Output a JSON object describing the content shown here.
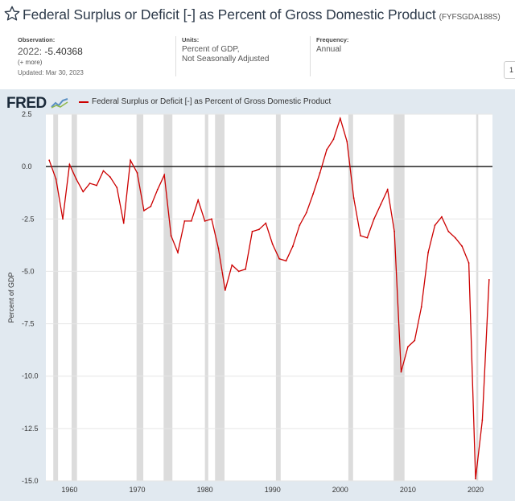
{
  "header": {
    "title": "Federal Surplus or Deficit [-] as Percent of Gross Domestic Product",
    "series_id": "(FYFSGDA188S)"
  },
  "meta": {
    "observation_label": "Observation:",
    "observation_year": "2022:",
    "observation_value": "-5.40368",
    "more_label": "(+ more)",
    "updated": "Updated: Mar 30, 2023",
    "units_label": "Units:",
    "units_line1": "Percent of GDP,",
    "units_line2": "Not Seasonally Adjusted",
    "frequency_label": "Frequency:",
    "frequency_value": "Annual",
    "edge_button": "1"
  },
  "brand": {
    "logo_text": "FRED",
    "accent": "#cc0000",
    "background": "#e1e9f0"
  },
  "chart_data": {
    "type": "line",
    "legend": "Federal Surplus or Deficit [-] as Percent of Gross Domestic Product",
    "ylabel": "Percent of GDP",
    "xlabel": "",
    "xlim": [
      1956.5,
      2022.5
    ],
    "ylim": [
      -15.0,
      2.5
    ],
    "y_ticks": [
      "2.5",
      "0.0",
      "-2.5",
      "-5.0",
      "-7.5",
      "-10.0",
      "-12.5",
      "-15.0"
    ],
    "y_tick_values": [
      2.5,
      0,
      -2.5,
      -5,
      -7.5,
      -10,
      -12.5,
      -15
    ],
    "x_ticks": [
      "1960",
      "1970",
      "1980",
      "1990",
      "2000",
      "2010",
      "2020"
    ],
    "x_tick_values": [
      1960,
      1970,
      1980,
      1990,
      2000,
      2010,
      2020
    ],
    "grid": "horizontal",
    "zero_line": true,
    "recessions": [
      [
        1957.6,
        1958.3
      ],
      [
        1960.3,
        1961.1
      ],
      [
        1969.9,
        1970.9
      ],
      [
        1973.9,
        1975.2
      ],
      [
        1980.0,
        1980.5
      ],
      [
        1981.5,
        1982.9
      ],
      [
        1990.5,
        1991.2
      ],
      [
        2001.2,
        2001.9
      ],
      [
        2007.9,
        2009.5
      ],
      [
        2020.1,
        2020.4
      ]
    ],
    "series": [
      {
        "color": "#cc0000",
        "x": [
          1957,
          1958,
          1959,
          1960,
          1961,
          1962,
          1963,
          1964,
          1965,
          1966,
          1967,
          1968,
          1969,
          1970,
          1971,
          1972,
          1973,
          1974,
          1975,
          1976,
          1977,
          1978,
          1979,
          1980,
          1981,
          1982,
          1983,
          1984,
          1985,
          1986,
          1987,
          1988,
          1989,
          1990,
          1991,
          1992,
          1993,
          1994,
          1995,
          1996,
          1997,
          1998,
          1999,
          2000,
          2001,
          2002,
          2003,
          2004,
          2005,
          2006,
          2007,
          2008,
          2009,
          2010,
          2011,
          2012,
          2013,
          2014,
          2015,
          2016,
          2017,
          2018,
          2019,
          2020,
          2021,
          2022
        ],
        "values": [
          0.3,
          -0.6,
          -2.5,
          0.1,
          -0.6,
          -1.2,
          -0.8,
          -0.9,
          -0.2,
          -0.5,
          -1.0,
          -2.7,
          0.3,
          -0.3,
          -2.1,
          -1.9,
          -1.1,
          -0.4,
          -3.3,
          -4.1,
          -2.6,
          -2.6,
          -1.6,
          -2.6,
          -2.5,
          -3.9,
          -5.9,
          -4.7,
          -5.0,
          -4.9,
          -3.1,
          -3.0,
          -2.7,
          -3.7,
          -4.4,
          -4.5,
          -3.8,
          -2.8,
          -2.2,
          -1.3,
          -0.3,
          0.8,
          1.3,
          2.3,
          1.2,
          -1.5,
          -3.3,
          -3.4,
          -2.5,
          -1.8,
          -1.1,
          -3.1,
          -9.8,
          -8.6,
          -8.3,
          -6.7,
          -4.1,
          -2.8,
          -2.4,
          -3.1,
          -3.4,
          -3.8,
          -4.6,
          -14.9,
          -12.1,
          -5.4
        ]
      }
    ]
  }
}
